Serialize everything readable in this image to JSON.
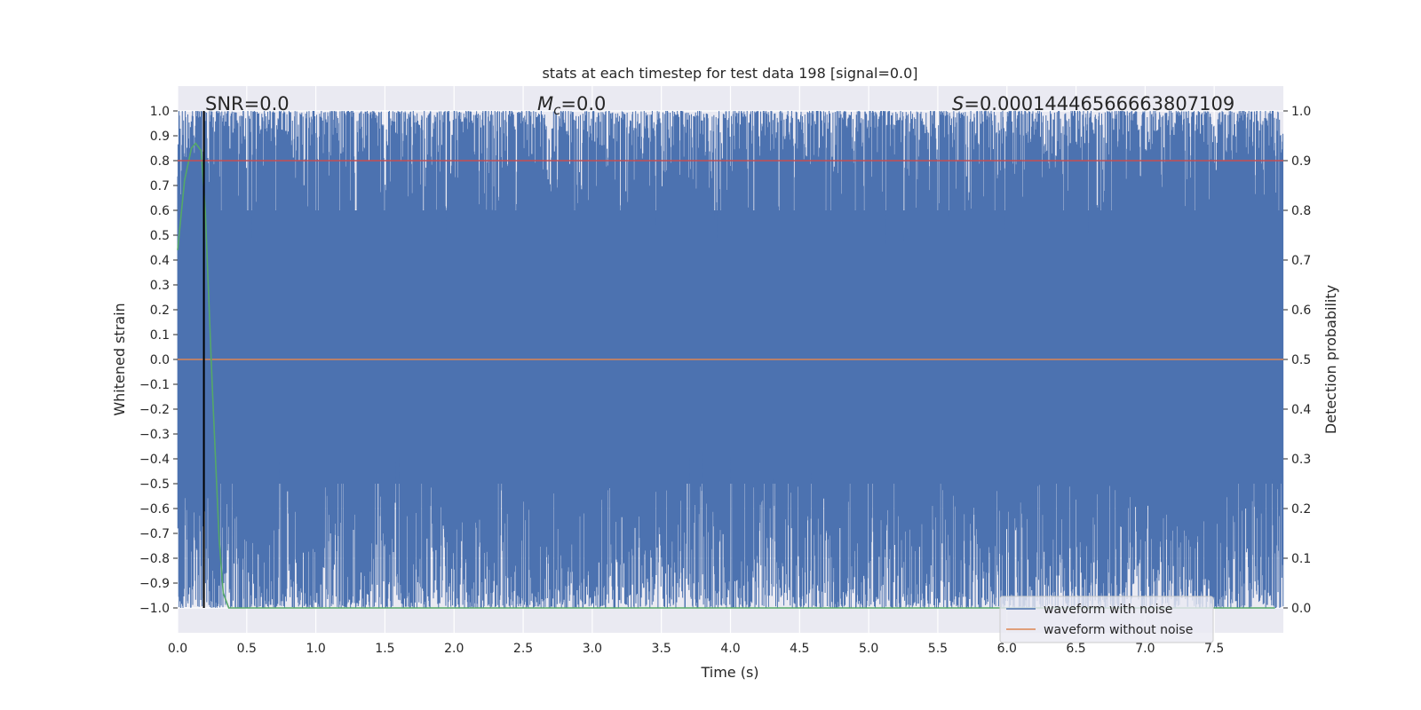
{
  "chart_data": {
    "type": "line",
    "title": "stats at each timestep for test data 198 [signal=0.0]",
    "xlabel": "Time (s)",
    "ylabel": "Whitened strain",
    "y2label": "Detection probability",
    "xlim": [
      0.0,
      8.0
    ],
    "ylim": [
      -1.1,
      1.1
    ],
    "y2lim": [
      -0.05,
      1.05
    ],
    "xticks": [
      "0.0",
      "0.5",
      "1.0",
      "1.5",
      "2.0",
      "2.5",
      "3.0",
      "3.5",
      "4.0",
      "4.5",
      "5.0",
      "5.5",
      "6.0",
      "6.5",
      "7.0",
      "7.5"
    ],
    "yticks": [
      "1.0",
      "0.9",
      "0.8",
      "0.7",
      "0.6",
      "0.5",
      "0.4",
      "0.3",
      "0.2",
      "0.1",
      "0.0",
      "−0.1",
      "−0.2",
      "−0.3",
      "−0.4",
      "−0.5",
      "−0.6",
      "−0.7",
      "−0.8",
      "−0.9",
      "−1.0"
    ],
    "y2ticks": [
      "1.0",
      "0.9",
      "0.8",
      "0.7",
      "0.6",
      "0.5",
      "0.4",
      "0.3",
      "0.2",
      "0.1",
      "0.0"
    ],
    "grid": true,
    "legend_position": "bottom-right",
    "annotations": {
      "snr": "SNR=0.0",
      "mc_symbol": "M",
      "mc_subscript": "c",
      "mc_value": "=0.0",
      "s_symbol": "S",
      "s_value": "=0.00014446566663807109"
    },
    "series": [
      {
        "name": "waveform with noise",
        "color": "#4c72b0",
        "axis": "left",
        "description_free": true,
        "x_range": [
          0.0,
          8.0
        ],
        "y_range": [
          -1.0,
          1.0
        ]
      },
      {
        "name": "waveform without noise",
        "color": "#dd8452",
        "axis": "left",
        "x": [
          0.0,
          8.0
        ],
        "y": [
          0.0,
          0.0
        ]
      },
      {
        "color": "#55a868",
        "axis": "right",
        "x": [
          0.0,
          0.05,
          0.1,
          0.13,
          0.17,
          0.2,
          0.25,
          0.3,
          0.33,
          0.37,
          1.0,
          3.0,
          5.0,
          7.0,
          7.94
        ],
        "y": [
          0.72,
          0.86,
          0.925,
          0.935,
          0.92,
          0.8,
          0.45,
          0.14,
          0.03,
          0.0,
          0.0,
          0.0,
          0.0,
          0.0,
          0.0
        ]
      },
      {
        "color": "#c44e52",
        "axis": "right",
        "x": [
          0.0,
          8.0
        ],
        "y": [
          0.9,
          0.9
        ]
      }
    ],
    "vertical_marker": {
      "x": 0.19,
      "color": "#000000"
    }
  }
}
